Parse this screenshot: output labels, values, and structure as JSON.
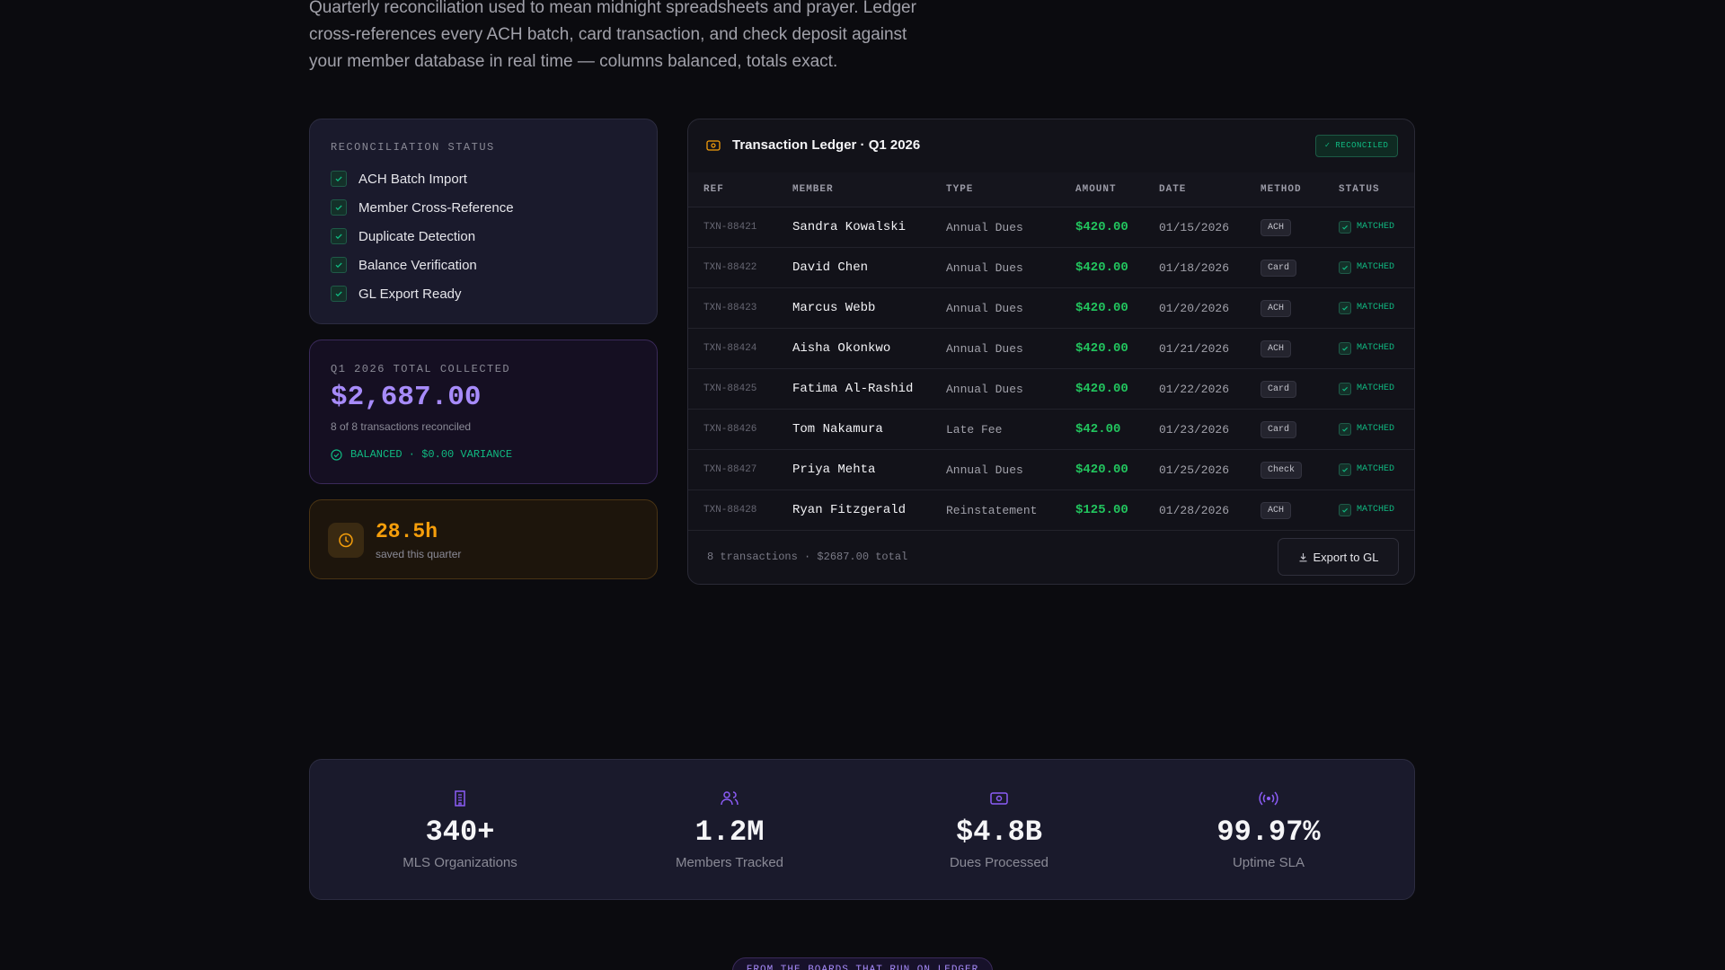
{
  "intro": "Quarterly reconciliation used to mean midnight spreadsheets and prayer. Ledger cross-references every ACH batch, card transaction, and check deposit against your member database in real time — columns balanced, totals exact.",
  "status_card": {
    "title": "RECONCILIATION STATUS",
    "items": [
      "ACH Batch Import",
      "Member Cross-Reference",
      "Duplicate Detection",
      "Balance Verification",
      "GL Export Ready"
    ]
  },
  "total_card": {
    "label": "Q1 2026 TOTAL COLLECTED",
    "amount": "$2,687.00",
    "sub": "8 of 8 transactions reconciled",
    "badge": "BALANCED · $0.00 VARIANCE"
  },
  "hours_card": {
    "value": "28.5h",
    "label": "saved this quarter"
  },
  "ledger": {
    "title": "Transaction Ledger · Q1 2026",
    "badge": "✓ RECONCILED",
    "columns": [
      "REF",
      "MEMBER",
      "TYPE",
      "AMOUNT",
      "DATE",
      "METHOD",
      "STATUS"
    ],
    "rows": [
      [
        "TXN-88421",
        "Sandra Kowalski",
        "Annual Dues",
        "$420.00",
        "01/15/2026",
        "ACH",
        "MATCHED"
      ],
      [
        "TXN-88422",
        "David Chen",
        "Annual Dues",
        "$420.00",
        "01/18/2026",
        "Card",
        "MATCHED"
      ],
      [
        "TXN-88423",
        "Marcus Webb",
        "Annual Dues",
        "$420.00",
        "01/20/2026",
        "ACH",
        "MATCHED"
      ],
      [
        "TXN-88424",
        "Aisha Okonkwo",
        "Annual Dues",
        "$420.00",
        "01/21/2026",
        "ACH",
        "MATCHED"
      ],
      [
        "TXN-88425",
        "Fatima Al-Rashid",
        "Annual Dues",
        "$420.00",
        "01/22/2026",
        "Card",
        "MATCHED"
      ],
      [
        "TXN-88426",
        "Tom Nakamura",
        "Late Fee",
        "$42.00",
        "01/23/2026",
        "Card",
        "MATCHED"
      ],
      [
        "TXN-88427",
        "Priya Mehta",
        "Annual Dues",
        "$420.00",
        "01/25/2026",
        "Check",
        "MATCHED"
      ],
      [
        "TXN-88428",
        "Ryan Fitzgerald",
        "Reinstatement",
        "$125.00",
        "01/28/2026",
        "ACH",
        "MATCHED"
      ]
    ],
    "footer": "8 transactions · $2687.00 total",
    "export": "Export to GL"
  },
  "stats": [
    {
      "value": "340+",
      "label": "MLS Organizations"
    },
    {
      "value": "1.2M",
      "label": "Members Tracked"
    },
    {
      "value": "$4.8B",
      "label": "Dues Processed"
    },
    {
      "value": "99.97%",
      "label": "Uptime SLA"
    }
  ],
  "banner": "FROM THE BOARDS THAT RUN ON LEDGER"
}
